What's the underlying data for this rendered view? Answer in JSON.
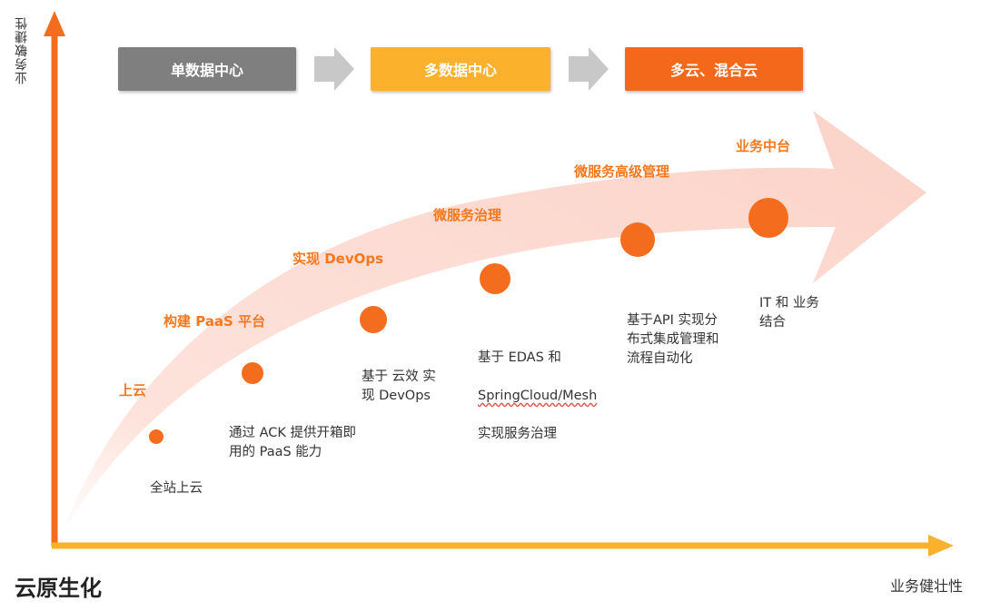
{
  "y_axis_label": "业务敏捷性",
  "x_axis_label": "业务健壮性",
  "title": "云原生化",
  "stages": [
    {
      "label": "单数据中心",
      "color": "#7f7f7f"
    },
    {
      "label": "多数据中心",
      "color": "#fbb12b"
    },
    {
      "label": "多云、混合云",
      "color": "#f4681c"
    }
  ],
  "milestones": [
    {
      "title": "上云",
      "description": "全站上云"
    },
    {
      "title": "构建 PaaS 平台",
      "description": "通过 ACK 提供开箱即\n用的 PaaS 能力"
    },
    {
      "title": "实现 DevOps",
      "description": "基于 云效 实\n现 DevOps"
    },
    {
      "title": "微服务治理",
      "description_line1": "基于 EDAS 和",
      "description_line2": "SpringCloud/Mesh",
      "description_line3": "实现服务治理"
    },
    {
      "title": "微服务高级管理",
      "description": "基于API 实现分\n布式集成管理和\n流程自动化"
    },
    {
      "title": "业务中台",
      "description": "IT 和 业务\n结合"
    }
  ],
  "colors": {
    "axis_y": "#f46d1e",
    "axis_x": "#fbb12b",
    "dot": "#f46d1e",
    "arrow_band": "#fcd9d0",
    "milestone_text": "#f4781e",
    "chevron": "#c8c8c8"
  }
}
